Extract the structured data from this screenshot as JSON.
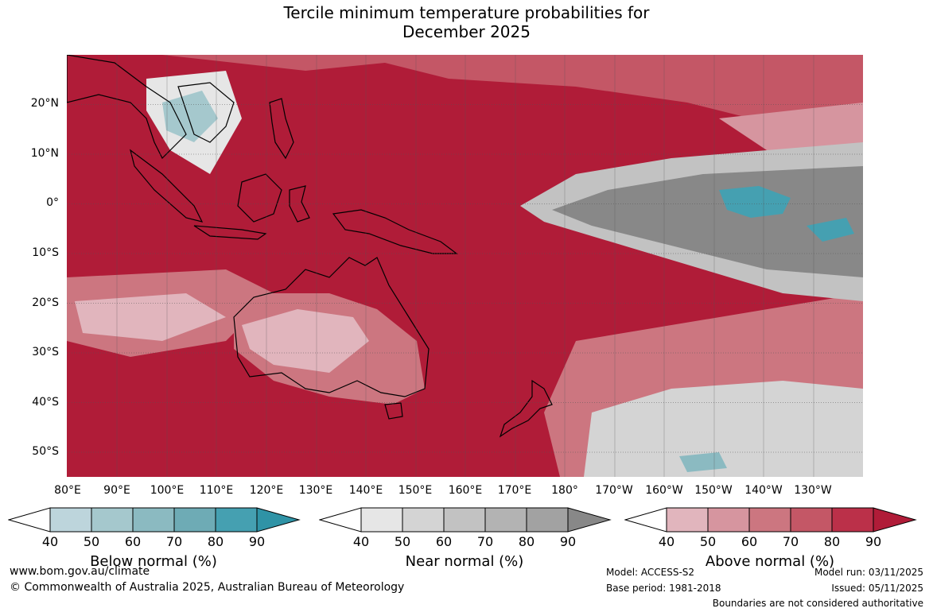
{
  "title_line1": "Tercile minimum temperature probabilities for",
  "title_line2": "December 2025",
  "lat_labels": [
    "20°N",
    "10°N",
    "0°",
    "10°S",
    "20°S",
    "30°S",
    "40°S",
    "50°S"
  ],
  "lon_labels": [
    "80°E",
    "90°E",
    "100°E",
    "110°E",
    "120°E",
    "130°E",
    "140°E",
    "150°E",
    "160°E",
    "170°E",
    "180°",
    "170°W",
    "160°W",
    "150°W",
    "140°W",
    "130°W"
  ],
  "legends": [
    {
      "title": "Below normal (%)",
      "ticks": [
        "40",
        "50",
        "60",
        "70",
        "80",
        "90"
      ],
      "colors": [
        "#bdd5dc",
        "#a5c8cd",
        "#8bbac1",
        "#6eabb5",
        "#45a0b1",
        "#2f93a6"
      ]
    },
    {
      "title": "Near normal (%)",
      "ticks": [
        "40",
        "50",
        "60",
        "70",
        "80",
        "90"
      ],
      "colors": [
        "#e6e6e6",
        "#d4d4d4",
        "#c2c2c2",
        "#b3b3b3",
        "#a2a2a2",
        "#888888"
      ]
    },
    {
      "title": "Above normal (%)",
      "ticks": [
        "40",
        "50",
        "60",
        "70",
        "80",
        "90"
      ],
      "colors": [
        "#e1b5bd",
        "#d6959f",
        "#cc7680",
        "#c45766",
        "#bb3049",
        "#b01c38"
      ]
    }
  ],
  "footer": {
    "url": "www.bom.gov.au/climate",
    "copyright": "© Commonwealth of Australia 2025, Australian Bureau of Meteorology",
    "model": "Model: ACCESS-S2",
    "base_period": "Base period: 1981-2018",
    "model_run": "Model run: 03/11/2025",
    "issued": "Issued: 05/11/2025",
    "disclaimer": "Boundaries are not considered authoritative"
  }
}
